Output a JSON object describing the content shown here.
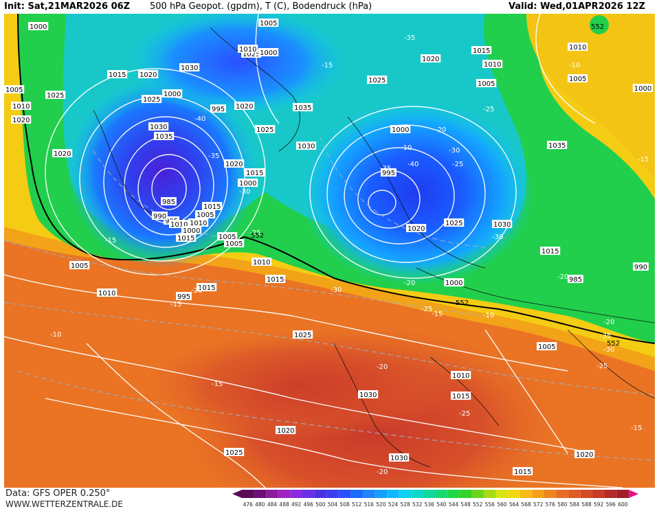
{
  "header": {
    "init": "Init: Sat,21MAR2026 06Z",
    "title": "500 hPa Geopot. (gpdm), T (C), Bodendruck (hPa)",
    "valid": "Valid: Wed,01APR2026 12Z"
  },
  "footer": {
    "source": "Data: GFS OPER 0.250°",
    "site": "WWW.WETTERZENTRALE.DE"
  },
  "legend": {
    "ticks": [
      "476",
      "480",
      "484",
      "488",
      "492",
      "496",
      "500",
      "504",
      "508",
      "512",
      "516",
      "520",
      "524",
      "528",
      "532",
      "536",
      "540",
      "544",
      "548",
      "552",
      "556",
      "560",
      "564",
      "568",
      "572",
      "576",
      "580",
      "584",
      "588",
      "592",
      "596",
      "600"
    ],
    "colors": [
      "#5a0a55",
      "#6e0f78",
      "#8b1a9c",
      "#a020c0",
      "#8a2be2",
      "#6a30e6",
      "#4b32e0",
      "#3c3cf0",
      "#2a50ff",
      "#1a6cff",
      "#1d86ff",
      "#16a0ff",
      "#10b8ff",
      "#0fd0f0",
      "#10d8c8",
      "#12d89c",
      "#18d870",
      "#1cd846",
      "#35d22a",
      "#6ad41e",
      "#a6dc14",
      "#d8e410",
      "#f2d812",
      "#f6bc14",
      "#f4a018",
      "#ef8520",
      "#e86c24",
      "#e05a24",
      "#d44a24",
      "#c63a26",
      "#b52a28",
      "#a01e2a"
    ],
    "arrow_left_color": "#5a0a55",
    "arrow_right_color": "#e6108a"
  },
  "pressure_labels": [
    "1000",
    "1005",
    "1010",
    "1015",
    "1020",
    "1025",
    "1030",
    "1035",
    "995",
    "990",
    "985",
    "1025",
    "1020",
    "1015",
    "1010",
    "1005",
    "1000",
    "995",
    "1030",
    "1025",
    "1020",
    "1015",
    "1010",
    "1005",
    "1000",
    "1035",
    "1030",
    "1025",
    "1020",
    "1015",
    "1010",
    "1005",
    "1000",
    "995",
    "1020",
    "1025",
    "1030",
    "1035",
    "1015",
    "1010",
    "1005",
    "1000",
    "985",
    "990",
    "995",
    "1005",
    "1010",
    "1015",
    "1020",
    "1025",
    "1030",
    "1020",
    "1025",
    "1030",
    "1015",
    "1020",
    "1015",
    "1010",
    "1005",
    "1000",
    "1025",
    "1020",
    "1015",
    "1010",
    "1005",
    "1000",
    "1000",
    "1010",
    "1005",
    "1015"
  ],
  "temperature_labels": [
    "-40",
    "-35",
    "-30",
    "-25",
    "-20",
    "-15",
    "-10",
    "-35",
    "-30",
    "-25",
    "-20",
    "-15",
    "-10",
    "-40",
    "-35",
    "-30",
    "-25",
    "-20",
    "-30",
    "-25",
    "-20",
    "-15",
    "-10",
    "-20",
    "-35",
    "-30",
    "-25",
    "-20",
    "-15",
    "-25",
    "-20",
    "-15",
    "-10",
    "-15",
    "-15"
  ],
  "geopotential_labels": [
    "552",
    "552",
    "552",
    "552"
  ]
}
